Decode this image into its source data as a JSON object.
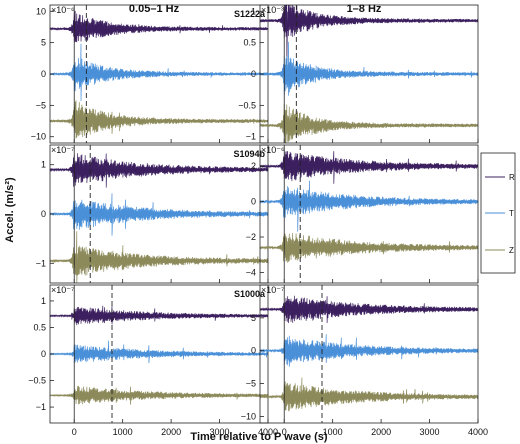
{
  "figure": {
    "ylabel": "Accel. (m/s²)",
    "xlabel": "Time relative to P wave (s)",
    "columns": [
      "0.05–1 Hz",
      "1–8 Hz"
    ]
  },
  "legend": {
    "position": "right",
    "entries": [
      {
        "label": "R",
        "color": "#3b1f5e"
      },
      {
        "label": "T",
        "color": "#4a90d9"
      },
      {
        "label": "Z",
        "color": "#8c8a5a"
      }
    ]
  },
  "colors": {
    "R": "#3b1f5e",
    "T": "#4a90d9",
    "Z": "#8c8a5a"
  },
  "chart_data": [
    {
      "type": "line",
      "row": 0,
      "col": 0,
      "event_label": "S1222a",
      "multiplier": "×10⁻⁶",
      "ylim": [
        -11,
        11
      ],
      "yticks": [
        -10,
        -5,
        0,
        5,
        10
      ],
      "xlim": [
        -500,
        4000
      ],
      "marker_x": 250,
      "onset": -10,
      "decay": 600,
      "series": [
        {
          "component": "R",
          "offset": 7.2,
          "amp": 2.6
        },
        {
          "component": "T",
          "offset": 0,
          "amp": 2.6
        },
        {
          "component": "Z",
          "offset": -7.5,
          "amp": 3.0
        }
      ]
    },
    {
      "type": "line",
      "row": 0,
      "col": 1,
      "event_label": "",
      "multiplier": "×10⁻³",
      "ylim": [
        -1.1,
        1.1
      ],
      "yticks": [
        -1,
        -0.5,
        0,
        0.5,
        1
      ],
      "xlim": [
        -500,
        4000
      ],
      "marker_x": 250,
      "onset": -10,
      "decay": 500,
      "series": [
        {
          "component": "R",
          "offset": 0.85,
          "amp": 0.32
        },
        {
          "component": "T",
          "offset": 0,
          "amp": 0.32
        },
        {
          "component": "Z",
          "offset": -0.82,
          "amp": 0.32
        }
      ]
    },
    {
      "type": "line",
      "row": 1,
      "col": 0,
      "event_label": "S1094b",
      "multiplier": "×10⁻⁷",
      "ylim": [
        -1.4,
        1.4
      ],
      "yticks": [
        -1,
        0,
        1
      ],
      "xlim": [
        -500,
        4000
      ],
      "marker_x": 330,
      "onset": -20,
      "decay": 1200,
      "series": [
        {
          "component": "R",
          "offset": 0.9,
          "amp": 0.3
        },
        {
          "component": "T",
          "offset": 0,
          "amp": 0.3
        },
        {
          "component": "Z",
          "offset": -0.95,
          "amp": 0.3
        }
      ]
    },
    {
      "type": "line",
      "row": 1,
      "col": 1,
      "event_label": "",
      "multiplier": "×10⁻⁶",
      "ylim": [
        -4.6,
        3.2
      ],
      "yticks": [
        -4,
        -2,
        0,
        2
      ],
      "xlim": [
        -500,
        4000
      ],
      "marker_x": 330,
      "onset": -20,
      "decay": 1300,
      "series": [
        {
          "component": "R",
          "offset": 2.0,
          "amp": 0.8
        },
        {
          "component": "T",
          "offset": 0,
          "amp": 0.8
        },
        {
          "component": "Z",
          "offset": -2.6,
          "amp": 0.8
        }
      ]
    },
    {
      "type": "line",
      "row": 2,
      "col": 0,
      "event_label": "S1000a",
      "multiplier": "×10⁻⁷",
      "ylim": [
        -1.3,
        1.3
      ],
      "yticks": [
        -1,
        -0.5,
        0,
        0.5,
        1
      ],
      "xlim": [
        -500,
        4000
      ],
      "marker_x": 780,
      "onset": 0,
      "decay": 1400,
      "series": [
        {
          "component": "R",
          "offset": 0.72,
          "amp": 0.16
        },
        {
          "component": "T",
          "offset": 0,
          "amp": 0.16
        },
        {
          "component": "Z",
          "offset": -0.78,
          "amp": 0.16
        }
      ]
    },
    {
      "type": "line",
      "row": 2,
      "col": 1,
      "event_label": "",
      "multiplier": "×10⁻⁷",
      "ylim": [
        -11,
        10
      ],
      "yticks": [
        -10,
        -5,
        0,
        5
      ],
      "xlim": [
        -500,
        4000
      ],
      "marker_x": 780,
      "onset": 0,
      "decay": 1300,
      "xticks": [
        0,
        1000,
        2000,
        3000,
        4000
      ],
      "series": [
        {
          "component": "R",
          "offset": 6.3,
          "amp": 2.0
        },
        {
          "component": "T",
          "offset": 0,
          "amp": 2.0
        },
        {
          "component": "Z",
          "offset": -7.0,
          "amp": 2.0
        }
      ]
    }
  ]
}
